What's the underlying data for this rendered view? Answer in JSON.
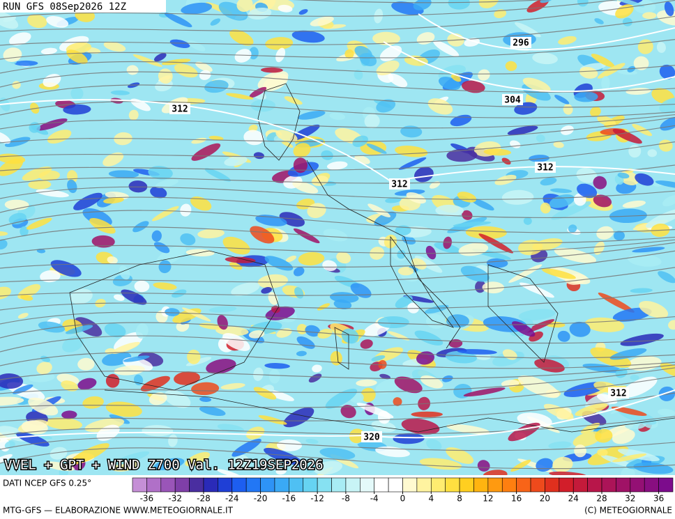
{
  "header": {
    "run": "RUN GFS 08Sep2026 12Z"
  },
  "title": "VVEL + GPT + WIND Z700 Val. 12Z19SEP2026",
  "source": "DATI NCEP GFS 0.25°",
  "footer": {
    "left": "MTG-GFS — ELABORAZIONE WWW.METEOGIORNALE.IT",
    "right": "(C) METEOGIORNALE"
  },
  "contour_labels": [
    296,
    304,
    312,
    312,
    312,
    312,
    320
  ],
  "colorbar": {
    "ticks": [
      -36,
      -32,
      -28,
      -24,
      -20,
      -16,
      -12,
      -8,
      -4,
      0,
      4,
      8,
      12,
      16,
      20,
      24,
      28,
      32,
      36
    ],
    "colors": [
      "#c58fd6",
      "#b070c8",
      "#9a55b8",
      "#7f3fa8",
      "#4a2ea0",
      "#2a2ab8",
      "#1f3fd6",
      "#1d5ef0",
      "#2277f5",
      "#2e93f6",
      "#3aa9f5",
      "#4fc0f3",
      "#66d3f2",
      "#86e1f2",
      "#a8ecf4",
      "#c8f4f6",
      "#e4fafa",
      "#ffffff",
      "#ffffff",
      "#fffad0",
      "#fff3a0",
      "#ffec70",
      "#ffe040",
      "#ffcf20",
      "#ffb410",
      "#ff9a10",
      "#ff7f10",
      "#f86418",
      "#ee4a1c",
      "#e0301e",
      "#d21e2a",
      "#c41a3a",
      "#b8164a",
      "#ac1458",
      "#a01266",
      "#941074",
      "#880e80",
      "#7c0c8c"
    ]
  }
}
